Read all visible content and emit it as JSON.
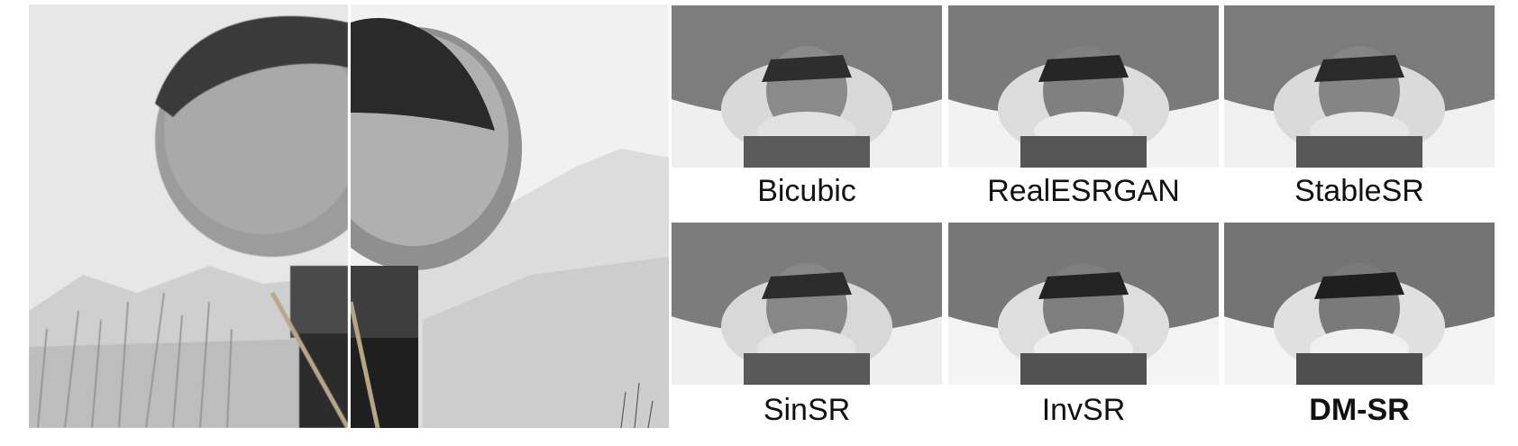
{
  "methods": [
    {
      "label": "Bicubic"
    },
    {
      "label": "RealESRGAN"
    },
    {
      "label": "StableSR"
    },
    {
      "label": "SinSR"
    },
    {
      "label": "InvSR"
    },
    {
      "label": "DM-SR"
    }
  ]
}
